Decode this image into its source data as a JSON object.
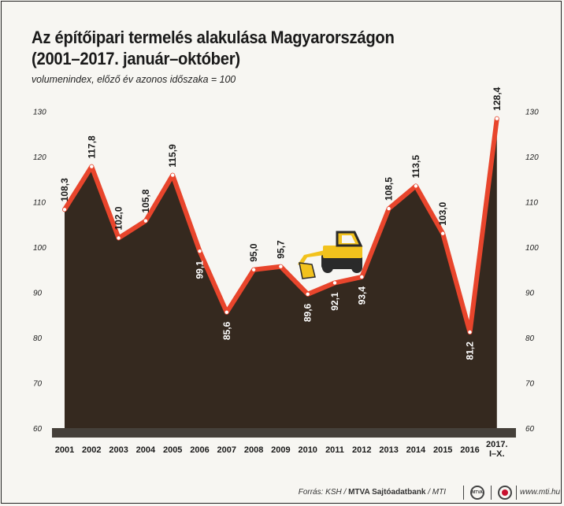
{
  "title_line1": "Az építőipari termelés alakulása Magyarországon",
  "title_line2": "(2001–2017. január–október)",
  "subtitle": "volumenindex, előző év azonos időszaka = 100",
  "colors": {
    "area": "#35291f",
    "line": "#e8452c",
    "axis_bar": "#45403a",
    "text": "#1a1a1a",
    "excavator": "#f2c21d"
  },
  "chart_data": {
    "type": "area",
    "categories": [
      "2001",
      "2002",
      "2003",
      "2004",
      "2005",
      "2006",
      "2007",
      "2008",
      "2009",
      "2010",
      "2011",
      "2012",
      "2013",
      "2014",
      "2015",
      "2016",
      "2017. I–X."
    ],
    "values": [
      108.3,
      117.8,
      102.0,
      105.8,
      115.9,
      99.1,
      85.6,
      95.0,
      95.7,
      89.6,
      92.1,
      93.4,
      108.5,
      113.5,
      103.0,
      81.2,
      128.4
    ],
    "labels": [
      "108,3",
      "117,8",
      "102,0",
      "105,8",
      "115,9",
      "99,1",
      "85,6",
      "95,0",
      "95,7",
      "89,6",
      "92,1",
      "93,4",
      "108,5",
      "113,5",
      "103,0",
      "81,2",
      "128,4"
    ],
    "yticks": [
      60,
      70,
      80,
      90,
      100,
      110,
      120,
      130
    ],
    "ylim": [
      60,
      130
    ]
  },
  "icons": [
    "excavator-icon"
  ],
  "footer": {
    "source_prefix": "Forrás: KSH / ",
    "source_bold": "MTVA Sajtóadatbank",
    "source_suffix": " / MTI",
    "mtva_logo": "MTVA",
    "site": "www.mti.hu"
  }
}
